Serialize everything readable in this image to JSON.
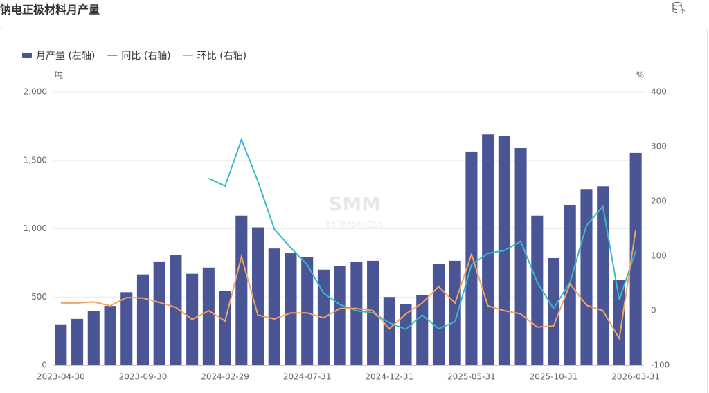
{
  "chart_data": {
    "type": "bar",
    "title": "钠电正极材料月产量",
    "y_unit": "吨",
    "y2_unit": "%",
    "watermark": [
      "SMM",
      "18766560255"
    ],
    "categories": [
      "2023-04-30",
      null,
      null,
      null,
      null,
      "2023-09-30",
      null,
      null,
      null,
      null,
      "2024-02-29",
      null,
      null,
      null,
      null,
      "2024-07-31",
      null,
      null,
      null,
      null,
      "2024-12-31",
      null,
      null,
      null,
      null,
      "2025-05-31",
      null,
      null,
      null,
      null,
      "2025-10-31",
      null,
      null,
      null,
      null,
      "2026-03-31"
    ],
    "series": [
      {
        "name": "月产量 (左轴)",
        "type": "bar",
        "color": "#4a5596",
        "values": [
          300,
          340,
          395,
          435,
          535,
          665,
          760,
          810,
          670,
          715,
          545,
          1095,
          1010,
          855,
          820,
          795,
          700,
          725,
          755,
          765,
          500,
          450,
          515,
          740,
          765,
          1565,
          1690,
          1680,
          1590,
          1095,
          785,
          1175,
          1290,
          1310,
          625,
          1555
        ]
      },
      {
        "name": "同比 (右轴)",
        "type": "line",
        "axis": "y2",
        "color": "#3bb8c8",
        "values": [
          null,
          null,
          null,
          null,
          null,
          null,
          null,
          null,
          null,
          242,
          228,
          313,
          237,
          149,
          115,
          84,
          32,
          11,
          0,
          -4,
          -22,
          -34,
          -8,
          -33,
          -20,
          84,
          105,
          110,
          127,
          52,
          4,
          52,
          156,
          191,
          20,
          109
        ]
      },
      {
        "name": "环比 (右轴)",
        "type": "line",
        "axis": "y2",
        "color": "#f0a465",
        "values": [
          14,
          14,
          16,
          9,
          24,
          23,
          15,
          6,
          -16,
          0,
          -19,
          99,
          -8,
          -15,
          -4,
          -4,
          -13,
          4,
          4,
          0,
          -33,
          -6,
          14,
          44,
          14,
          103,
          9,
          0,
          -6,
          -30,
          -28,
          49,
          10,
          0,
          -51,
          148
        ]
      }
    ],
    "ylim": [
      0,
      2000
    ],
    "yticks": [
      0,
      500,
      {
        "value": 1000,
        "label": "1,000"
      },
      {
        "value": 1500,
        "label": "1,500"
      },
      {
        "value": 2000,
        "label": "2,000"
      }
    ],
    "y2lim": [
      -100,
      400
    ],
    "y2ticks": [
      -100,
      0,
      100,
      200,
      300,
      400
    ],
    "grid": true,
    "legend": "top-left"
  }
}
